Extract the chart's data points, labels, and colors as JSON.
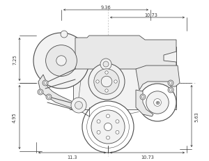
{
  "bg_color": "#ffffff",
  "line_color": "#4a4a4a",
  "dim_color": "#3a3a3a",
  "fig_width": 3.0,
  "fig_height": 2.32,
  "dpi": 100,
  "dimensions": {
    "top_left_width": "9.36",
    "top_right_width": "10.73",
    "left_top_height": "7.25",
    "left_bottom_height": "4.95",
    "right_height": "5.63",
    "bottom_left_width": "11.3",
    "bottom_right_width": "10.73"
  },
  "crosshair_color": "#aaaaaa",
  "component_edge": "#4a4a4a",
  "component_fill": "#f2f2f2",
  "component_fill2": "#e8e8e8"
}
